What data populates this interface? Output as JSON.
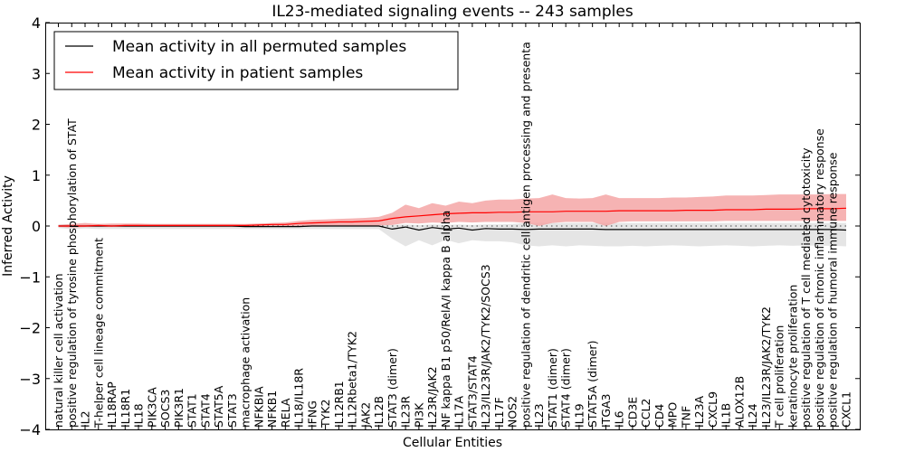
{
  "chart_data": {
    "type": "line",
    "title": "IL23-mediated signaling events -- 243 samples",
    "xlabel": "Cellular Entities",
    "ylabel": "Inferred Activity",
    "ylim": [
      -4,
      4
    ],
    "yticks": [
      4,
      3,
      2,
      1,
      0,
      -1,
      -2,
      -3,
      -4
    ],
    "ytick_labels": [
      "4",
      "3",
      "2",
      "1",
      "0",
      "−1",
      "−2",
      "−3",
      "−4"
    ],
    "grid": false,
    "legend_position": "top-left",
    "reference_line": {
      "y": 0,
      "style": "dotted"
    },
    "categories": [
      "natural killer cell activation",
      "positive regulation of tyrosine phosphorylation of STAT",
      "IL2",
      "T-helper cell lineage commitment",
      "IL18RAP",
      "IL18R1",
      "IL18",
      "PIK3CA",
      "SOCS3",
      "PIK3R1",
      "STAT1",
      "STAT4",
      "STAT5A",
      "STAT3",
      "macrophage activation",
      "NFKBIA",
      "NFKB1",
      "RELA",
      "IL18/IL18R",
      "IFNG",
      "TYK2",
      "IL12RB1",
      "IL12Rbeta1/TYK2",
      "JAK2",
      "IL12B",
      "STAT3 (dimer)",
      "IL23R",
      "PI3K",
      "IL23R/JAK2",
      "NF kappa B1 p50/RelA/I kappa B alpha",
      "IL17A",
      "STAT3/STAT4",
      "IL23/IL23R/JAK2/TYK2/SOCS3",
      "IL17F",
      "NOS2",
      "positive regulation of dendritic cell antigen processing and presenta",
      "IL23",
      "STAT1 (dimer)",
      "STAT4 (dimer)",
      "IL19",
      "STAT5A (dimer)",
      "ITGA3",
      "IL6",
      "CD3E",
      "CCL2",
      "CD4",
      "MPO",
      "TNF",
      "IL23A",
      "CXCL9",
      "IL1B",
      "ALOX12B",
      "IL24",
      "IL23/IL23R/JAK2/TYK2",
      "T cell proliferation",
      "keratinocyte proliferation",
      "positive regulation of T cell mediated cytotoxicity",
      "positive regulation of chronic inflammatory response",
      "positive regulation of humoral immune response",
      "CXCL1"
    ],
    "series": [
      {
        "name": "Mean activity in all permuted samples",
        "color": "#000000",
        "band_color": "#e0e0e0",
        "values": [
          0,
          0,
          0,
          0,
          0,
          0,
          0,
          0,
          0,
          0,
          0,
          0,
          0,
          0,
          -0.01,
          -0.01,
          -0.01,
          -0.01,
          -0.01,
          0,
          0,
          0,
          0,
          0,
          0,
          -0.06,
          -0.02,
          -0.08,
          -0.03,
          -0.06,
          -0.04,
          -0.08,
          -0.05,
          -0.06,
          -0.06,
          -0.07,
          -0.06,
          -0.06,
          -0.06,
          -0.06,
          -0.06,
          -0.07,
          -0.07,
          -0.07,
          -0.07,
          -0.07,
          -0.07,
          -0.07,
          -0.07,
          -0.07,
          -0.07,
          -0.07,
          -0.07,
          -0.07,
          -0.07,
          -0.07,
          -0.07,
          -0.07,
          -0.07,
          -0.08
        ],
        "band_upper": [
          0.03,
          0.04,
          0.03,
          0.04,
          0.04,
          0.04,
          0.04,
          0.04,
          0.04,
          0.04,
          0.04,
          0.04,
          0.04,
          0.04,
          0.03,
          0.03,
          0.03,
          0.03,
          0.03,
          0.03,
          0.03,
          0.03,
          0.03,
          0.03,
          0.03,
          0.02,
          0.03,
          0.02,
          0.03,
          0.02,
          0.03,
          0.02,
          0.03,
          0.03,
          0.04,
          0.06,
          0.06,
          0.06,
          0.06,
          0.06,
          0.06,
          0.06,
          0.06,
          0.06,
          0.06,
          0.06,
          0.06,
          0.06,
          0.06,
          0.06,
          0.06,
          0.06,
          0.06,
          0.06,
          0.06,
          0.06,
          0.06,
          0.06,
          0.06,
          0.06
        ],
        "band_lower": [
          -0.04,
          -0.06,
          -0.05,
          -0.06,
          -0.06,
          -0.06,
          -0.06,
          -0.06,
          -0.06,
          -0.06,
          -0.06,
          -0.06,
          -0.06,
          -0.06,
          -0.06,
          -0.06,
          -0.06,
          -0.06,
          -0.06,
          -0.06,
          -0.06,
          -0.06,
          -0.06,
          -0.06,
          -0.06,
          -0.25,
          -0.4,
          -0.28,
          -0.38,
          -0.27,
          -0.34,
          -0.28,
          -0.3,
          -0.3,
          -0.32,
          -0.38,
          -0.4,
          -0.38,
          -0.4,
          -0.38,
          -0.39,
          -0.4,
          -0.4,
          -0.39,
          -0.4,
          -0.39,
          -0.38,
          -0.39,
          -0.4,
          -0.39,
          -0.38,
          -0.39,
          -0.4,
          -0.39,
          -0.38,
          -0.39,
          -0.38,
          -0.39,
          -0.39,
          -0.4
        ]
      },
      {
        "name": "Mean activity in patient samples",
        "color": "#ff0000",
        "band_color": "#f4a0a0",
        "values": [
          0,
          0,
          0,
          0.01,
          0,
          0.01,
          0.01,
          0.01,
          0.01,
          0.01,
          0.01,
          0.01,
          0.01,
          0.01,
          0.01,
          0.02,
          0.03,
          0.03,
          0.05,
          0.06,
          0.07,
          0.08,
          0.08,
          0.09,
          0.1,
          0.15,
          0.18,
          0.2,
          0.22,
          0.24,
          0.25,
          0.26,
          0.26,
          0.27,
          0.27,
          0.28,
          0.28,
          0.28,
          0.29,
          0.29,
          0.29,
          0.29,
          0.3,
          0.3,
          0.3,
          0.3,
          0.3,
          0.31,
          0.31,
          0.31,
          0.32,
          0.32,
          0.32,
          0.33,
          0.33,
          0.33,
          0.34,
          0.34,
          0.34,
          0.35
        ],
        "band_upper": [
          0.02,
          0.04,
          0.06,
          0.04,
          0.05,
          0.05,
          0.05,
          0.04,
          0.04,
          0.04,
          0.04,
          0.04,
          0.04,
          0.04,
          0.04,
          0.05,
          0.06,
          0.07,
          0.1,
          0.12,
          0.13,
          0.14,
          0.15,
          0.16,
          0.18,
          0.26,
          0.42,
          0.35,
          0.45,
          0.4,
          0.48,
          0.45,
          0.5,
          0.52,
          0.52,
          0.54,
          0.55,
          0.62,
          0.55,
          0.54,
          0.55,
          0.62,
          0.55,
          0.55,
          0.55,
          0.55,
          0.56,
          0.56,
          0.57,
          0.58,
          0.6,
          0.6,
          0.6,
          0.61,
          0.62,
          0.62,
          0.62,
          0.62,
          0.63,
          0.63
        ],
        "band_lower": [
          -0.02,
          -0.03,
          -0.02,
          -0.02,
          -0.02,
          -0.02,
          -0.02,
          -0.02,
          -0.02,
          -0.02,
          -0.02,
          -0.02,
          -0.02,
          -0.02,
          -0.02,
          -0.01,
          -0.01,
          -0.01,
          -0.01,
          -0.01,
          -0.01,
          0,
          0,
          0,
          0.01,
          0.02,
          0.06,
          0.05,
          0.07,
          0.06,
          0.08,
          0.07,
          0.08,
          0.08,
          0.08,
          0.06,
          0.0,
          0.06,
          0.08,
          0.08,
          0.08,
          0.0,
          0.08,
          0.09,
          0.09,
          0.09,
          0.09,
          0.09,
          0.09,
          0.09,
          0.1,
          0.1,
          0.1,
          0.1,
          0.1,
          0.1,
          0.1,
          0.1,
          0.1,
          0.1
        ]
      }
    ]
  }
}
